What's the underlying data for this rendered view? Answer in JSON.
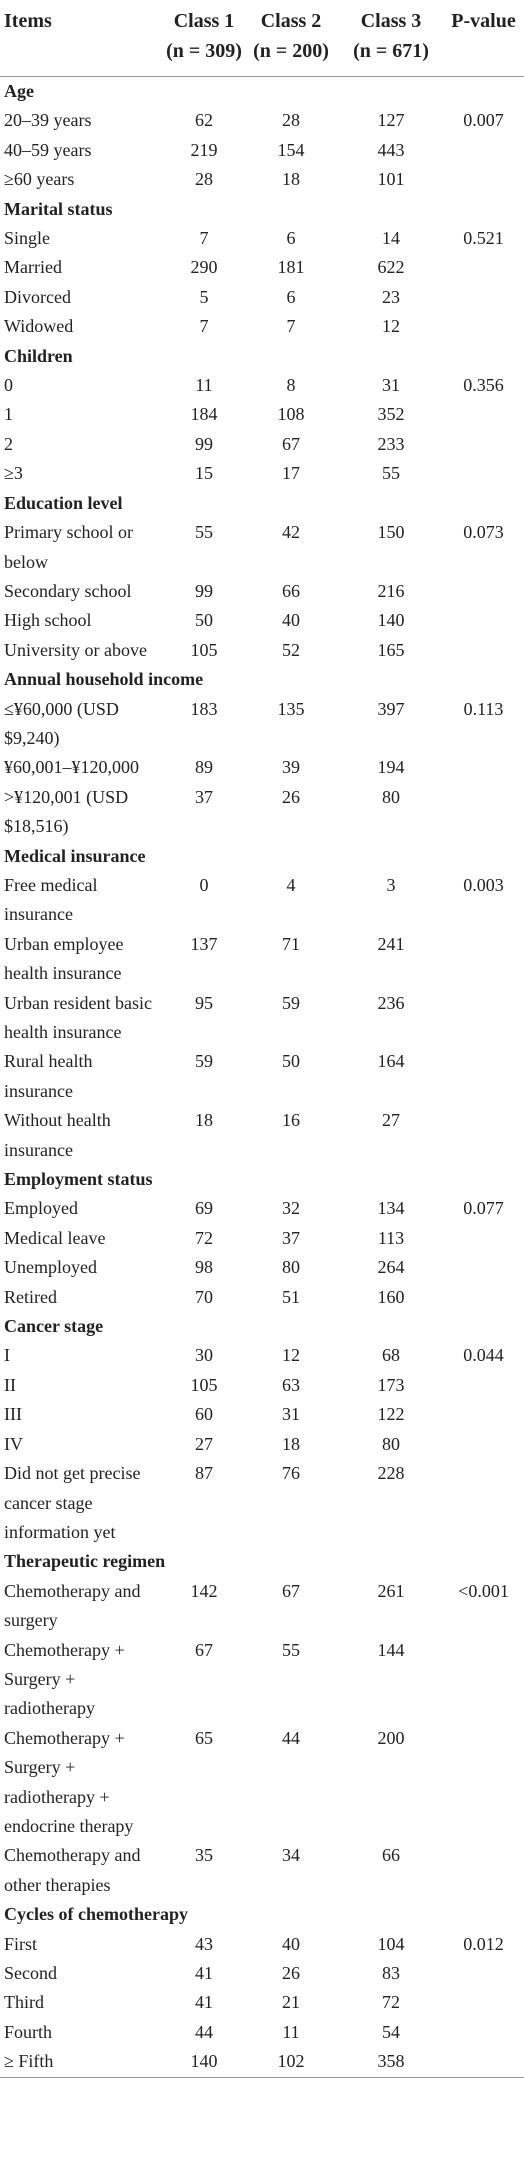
{
  "header": {
    "items": "Items",
    "columns": [
      {
        "name": "Class 1",
        "n": "(n = 309)"
      },
      {
        "name": "Class 2",
        "n": "(n = 200)"
      },
      {
        "name": "Class 3",
        "n": "(n = 671)"
      }
    ],
    "p_value": "P-value"
  },
  "sections": [
    {
      "title": "Age",
      "p_value": "0.007",
      "rows": [
        [
          "20–39 years",
          62,
          28,
          127
        ],
        [
          "40–59 years",
          219,
          154,
          443
        ],
        [
          "≥60 years",
          28,
          18,
          101
        ]
      ]
    },
    {
      "title": "Marital status",
      "p_value": "0.521",
      "rows": [
        [
          "Single",
          7,
          6,
          14
        ],
        [
          "Married",
          290,
          181,
          622
        ],
        [
          "Divorced",
          5,
          6,
          23
        ],
        [
          "Widowed",
          7,
          7,
          12
        ]
      ]
    },
    {
      "title": "Children",
      "p_value": "0.356",
      "rows": [
        [
          "0",
          11,
          8,
          31
        ],
        [
          "1",
          184,
          108,
          352
        ],
        [
          "2",
          99,
          67,
          233
        ],
        [
          "≥3",
          15,
          17,
          55
        ]
      ]
    },
    {
      "title": "Education level",
      "p_value": "0.073",
      "rows": [
        [
          "Primary school or below",
          55,
          42,
          150
        ],
        [
          "Secondary school",
          99,
          66,
          216
        ],
        [
          "High school",
          50,
          40,
          140
        ],
        [
          "University or above",
          105,
          52,
          165
        ]
      ]
    },
    {
      "title": "Annual household income",
      "p_value": "0.113",
      "rows": [
        [
          "≤¥60,000 (USD $9,240)",
          183,
          135,
          397
        ],
        [
          "¥60,001–¥120,000",
          89,
          39,
          194
        ],
        [
          ">¥120,001 (USD $18,516)",
          37,
          26,
          80
        ]
      ]
    },
    {
      "title": "Medical insurance",
      "p_value": "0.003",
      "rows": [
        [
          "Free medical insurance",
          0,
          4,
          3
        ],
        [
          "Urban employee health insurance",
          137,
          71,
          241
        ],
        [
          "Urban resident basic health insurance",
          95,
          59,
          236
        ],
        [
          "Rural health insurance",
          59,
          50,
          164
        ],
        [
          "Without health insurance",
          18,
          16,
          27
        ]
      ]
    },
    {
      "title": "Employment status",
      "p_value": "0.077",
      "rows": [
        [
          "Employed",
          69,
          32,
          134
        ],
        [
          "Medical leave",
          72,
          37,
          113
        ],
        [
          "Unemployed",
          98,
          80,
          264
        ],
        [
          "Retired",
          70,
          51,
          160
        ]
      ]
    },
    {
      "title": "Cancer stage",
      "p_value": "0.044",
      "rows": [
        [
          "I",
          30,
          12,
          68
        ],
        [
          "II",
          105,
          63,
          173
        ],
        [
          "III",
          60,
          31,
          122
        ],
        [
          "IV",
          27,
          18,
          80
        ],
        [
          "Did not get precise cancer stage information yet",
          87,
          76,
          228
        ]
      ]
    },
    {
      "title": "Therapeutic regimen",
      "p_value": "<0.001",
      "rows": [
        [
          "Chemotherapy and surgery",
          142,
          67,
          261
        ],
        [
          "Chemotherapy + Surgery + radiotherapy",
          67,
          55,
          144
        ],
        [
          "Chemotherapy + Surgery + radiotherapy + endocrine therapy",
          65,
          44,
          200
        ],
        [
          "Chemotherapy and other therapies",
          35,
          34,
          66
        ]
      ]
    },
    {
      "title": "Cycles of chemotherapy",
      "p_value": "0.012",
      "rows": [
        [
          "First",
          43,
          40,
          104
        ],
        [
          "Second",
          41,
          26,
          83
        ],
        [
          "Third",
          41,
          21,
          72
        ],
        [
          "Fourth",
          44,
          11,
          54
        ],
        [
          "≥ Fifth",
          140,
          102,
          358
        ]
      ]
    }
  ]
}
